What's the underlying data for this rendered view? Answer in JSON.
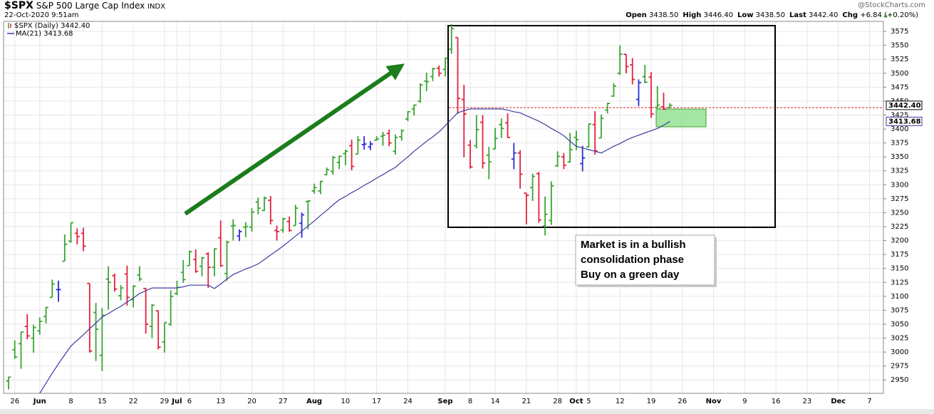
{
  "header": {
    "symbol": "$SPX",
    "name": "S&P 500 Large Cap Index",
    "exchange": "INDX",
    "date": "22-Oct-2020 9:51am",
    "source": "@StockCharts.com",
    "quote": [
      {
        "label": "Open",
        "value": "3438.50"
      },
      {
        "label": "High",
        "value": "3446.40"
      },
      {
        "label": "Low",
        "value": "3438.50"
      },
      {
        "label": "Last",
        "value": "3442.40"
      },
      {
        "label": "Chg",
        "value": "+6.84 (+0.20%)"
      }
    ]
  },
  "chart_data": {
    "type": "ohlc",
    "annotation": [
      "Market is in a bullish",
      "consolidation phase",
      "Buy on a green day"
    ],
    "categories": [
      null,
      "26",
      null,
      null,
      null,
      "Jun",
      null,
      null,
      null,
      null,
      "8",
      null,
      null,
      null,
      null,
      "15",
      null,
      null,
      null,
      null,
      "22",
      null,
      null,
      null,
      null,
      "29",
      null,
      "Jul",
      null,
      "6",
      null,
      null,
      null,
      null,
      "13",
      null,
      null,
      null,
      null,
      "20",
      null,
      null,
      null,
      null,
      "27",
      null,
      null,
      null,
      null,
      "Aug",
      null,
      null,
      null,
      null,
      "10",
      null,
      null,
      null,
      null,
      "17",
      null,
      null,
      null,
      null,
      "24",
      null,
      null,
      null,
      null,
      null,
      "Sep",
      null,
      null,
      null,
      "8",
      null,
      null,
      null,
      "14",
      null,
      null,
      null,
      null,
      "21",
      null,
      null,
      null,
      null,
      "28",
      null,
      null,
      "Oct",
      null,
      "5",
      null,
      null,
      null,
      null,
      "12",
      null,
      null,
      null,
      null,
      "19",
      null,
      null,
      null,
      null,
      "26",
      null,
      null,
      null,
      null,
      "Nov",
      null,
      null,
      null,
      null,
      "9",
      null,
      null,
      null,
      null,
      "16",
      null,
      null,
      null,
      null,
      "23",
      null,
      null,
      null,
      null,
      "Dec",
      null,
      null,
      null,
      null,
      "7",
      null,
      null
    ],
    "ylim": [
      2926,
      3593
    ],
    "yticks": [
      2950,
      2975,
      3000,
      3025,
      3050,
      3075,
      3100,
      3125,
      3150,
      3175,
      3200,
      3225,
      3250,
      3275,
      3300,
      3325,
      3350,
      3375,
      3400,
      3425,
      3450,
      3475,
      3500,
      3525,
      3550,
      3575
    ],
    "grid": true,
    "series": [
      {
        "name": "$SPX (Daily)",
        "last_label": "3442.40",
        "up_color": "#3aa332",
        "down_color": "#e3203c",
        "flat_color": "#2b2bd8",
        "open": [
          2948,
          3004,
          3015,
          3046,
          3025,
          3038,
          3064,
          3098,
          3112,
          3163,
          3199,
          3213,
          3213,
          3123,
          3071,
          2994,
          3131,
          3137,
          3101,
          3140,
          3094,
          3138,
          3114,
          3046,
          3074,
          3018,
          3050,
          3105,
          3143,
          3155,
          3166,
          3154,
          3176,
          3152,
          3205,
          3141,
          3226,
          3208,
          3224,
          3224,
          3269,
          3254,
          3272,
          3218,
          3219,
          3234,
          3227,
          3231,
          3270,
          3289,
          3289,
          3318,
          3324,
          3340,
          3356,
          3370,
          3355,
          3372,
          3368,
          3380,
          3387,
          3392,
          3360,
          3386,
          3418,
          3436,
          3450,
          3486,
          3494,
          3509,
          3507,
          3543,
          3564,
          3453,
          3371,
          3370,
          3412,
          3353,
          3364,
          3408,
          3411,
          3346,
          3357,
          3285,
          3295,
          3320,
          3226,
          3236,
          3334,
          3350,
          3341,
          3385,
          3338,
          3368,
          3408,
          3384,
          3434,
          3459,
          3500,
          3534,
          3515,
          3453,
          3494,
          3493,
          3439,
          3440,
          3438.5,
          null,
          null,
          null,
          null,
          null,
          null,
          null,
          null,
          null,
          null,
          null,
          null,
          null,
          null,
          null,
          null,
          null,
          null,
          null,
          null,
          null,
          null,
          null,
          null,
          null,
          null,
          null,
          null,
          null,
          null,
          null,
          null,
          null,
          null
        ],
        "high": [
          2956,
          3021,
          3036,
          3068,
          3049,
          3062,
          3081,
          3130,
          3128,
          3211,
          3232,
          3222,
          3223,
          3123,
          3088,
          3079,
          3154,
          3141,
          3120,
          3155,
          3120,
          3154,
          3115,
          3086,
          3074,
          3053,
          3111,
          3128,
          3165,
          3182,
          3184,
          3171,
          3179,
          3186,
          3236,
          3200,
          3238,
          3220,
          3233,
          3258,
          3277,
          3279,
          3280,
          3227,
          3241,
          3243,
          3264,
          3250,
          3272,
          3302,
          3307,
          3331,
          3352,
          3352,
          3363,
          3381,
          3387,
          3387,
          3378,
          3387,
          3395,
          3399,
          3390,
          3399,
          3432,
          3444,
          3482,
          3501,
          3510,
          3514,
          3528,
          3588,
          3564,
          3479,
          3380,
          3425,
          3425,
          3368,
          3402,
          3419,
          3428,
          3375,
          3362,
          3285,
          3320,
          3323,
          3279,
          3306,
          3360,
          3357,
          3393,
          3397,
          3370,
          3409,
          3432,
          3426,
          3447,
          3482,
          3550,
          3534,
          3527,
          3489,
          3515,
          3502,
          3477,
          3465,
          3446.4,
          null,
          null,
          null,
          null,
          null,
          null,
          null,
          null,
          null,
          null,
          null,
          null,
          null,
          null,
          null,
          null,
          null,
          null,
          null,
          null,
          null,
          null,
          null,
          null,
          null,
          null,
          null,
          null,
          null,
          null,
          null,
          null,
          null,
          null
        ],
        "low": [
          2933,
          2988,
          2970,
          3023,
          2999,
          3031,
          3051,
          3098,
          3090,
          3163,
          3196,
          3193,
          3181,
          2999,
          2984,
          2966,
          3076,
          3108,
          3093,
          3083,
          3080,
          3127,
          3033,
          3025,
          3005,
          2999,
          3047,
          3102,
          3124,
          3155,
          3142,
          3136,
          3115,
          3136,
          3153,
          3128,
          3200,
          3199,
          3206,
          3216,
          3247,
          3253,
          3229,
          3200,
          3214,
          3216,
          3227,
          3205,
          3220,
          3284,
          3283,
          3317,
          3318,
          3328,
          3335,
          3326,
          3355,
          3363,
          3362,
          3379,
          3370,
          3369,
          3354,
          3379,
          3414,
          3424,
          3447,
          3468,
          3486,
          3494,
          3494,
          3535,
          3427,
          3349,
          3329,
          3365,
          3329,
          3310,
          3364,
          3384,
          3384,
          3328,
          3293,
          3229,
          3271,
          3232,
          3209,
          3228,
          3332,
          3328,
          3340,
          3362,
          3324,
          3367,
          3354,
          3384,
          3428,
          3458,
          3497,
          3500,
          3480,
          3441,
          3482,
          3420,
          3435,
          3434,
          3438.5,
          null,
          null,
          null,
          null,
          null,
          null,
          null,
          null,
          null,
          null,
          null,
          null,
          null,
          null,
          null,
          null,
          null,
          null,
          null,
          null,
          null,
          null,
          null,
          null,
          null,
          null,
          null,
          null,
          null,
          null,
          null,
          null,
          null,
          null
        ],
        "close": [
          2955,
          2991,
          3036,
          3029,
          3044,
          3055,
          3080,
          3122,
          3112,
          3193,
          3232,
          3207,
          3190,
          3002,
          3041,
          3066,
          3125,
          3113,
          3115,
          3098,
          3118,
          3131,
          3050,
          3084,
          3009,
          3053,
          3100,
          3116,
          3130,
          3180,
          3145,
          3169,
          3152,
          3185,
          3155,
          3197,
          3227,
          3216,
          3225,
          3251,
          3258,
          3276,
          3236,
          3216,
          3239,
          3218,
          3258,
          3246,
          3271,
          3295,
          3306,
          3327,
          3349,
          3351,
          3360,
          3333,
          3380,
          3373,
          3373,
          3382,
          3389,
          3375,
          3385,
          3397,
          3431,
          3443,
          3479,
          3485,
          3508,
          3500,
          3527,
          3580,
          3455,
          3427,
          3332,
          3399,
          3339,
          3341,
          3383,
          3401,
          3385,
          3357,
          3319,
          3281,
          3315,
          3237,
          3247,
          3298,
          3351,
          3335,
          3363,
          3381,
          3348,
          3409,
          3361,
          3419,
          3446,
          3477,
          3534,
          3512,
          3489,
          3483,
          3484,
          3427,
          3443,
          3436,
          3442.4,
          null,
          null,
          null,
          null,
          null,
          null,
          null,
          null,
          null,
          null,
          null,
          null,
          null,
          null,
          null,
          null,
          null,
          null,
          null,
          null,
          null,
          null,
          null,
          null,
          null,
          null,
          null,
          null,
          null,
          null,
          null,
          null,
          null,
          null
        ]
      },
      {
        "name": "MA(21)",
        "last_label": "3413.68",
        "color": "#3c3ca0",
        "values": [
          null,
          null,
          null,
          null,
          null,
          2926,
          2944,
          2962,
          2979,
          2995,
          3011,
          3021,
          3031,
          3042,
          3052,
          3063,
          3069,
          3076,
          3082,
          3090,
          3097,
          3105,
          3110,
          3115,
          3115,
          3115,
          3115,
          3115,
          3117,
          3120,
          3120,
          3120,
          3120,
          3114,
          3122,
          3131,
          3139,
          3144,
          3149,
          3153,
          3158,
          3166,
          3174,
          3182,
          3190,
          3199,
          3208,
          3217,
          3226,
          3235,
          3245,
          3254,
          3264,
          3273,
          3279,
          3286,
          3292,
          3299,
          3305,
          3312,
          3318,
          3325,
          3331,
          3341,
          3350,
          3360,
          3369,
          3378,
          3386,
          3395,
          3406,
          3418,
          3429,
          3433,
          3436,
          3436,
          3436,
          3436,
          3436,
          3436,
          3434,
          3431,
          3429,
          3424,
          3419,
          3414,
          3408,
          3401,
          3395,
          3388,
          3378,
          3369,
          3366,
          3363,
          3360,
          3357,
          3363,
          3369,
          3374,
          3380,
          3385,
          3389,
          3393,
          3397,
          3401,
          3407,
          3413.68,
          null,
          null,
          null,
          null,
          null,
          null,
          null,
          null,
          null,
          null,
          null,
          null,
          null,
          null,
          null,
          null,
          null,
          null,
          null,
          null,
          null,
          null,
          null,
          null,
          null,
          null,
          null,
          null,
          null,
          null,
          null,
          null,
          null,
          null
        ]
      }
    ]
  }
}
